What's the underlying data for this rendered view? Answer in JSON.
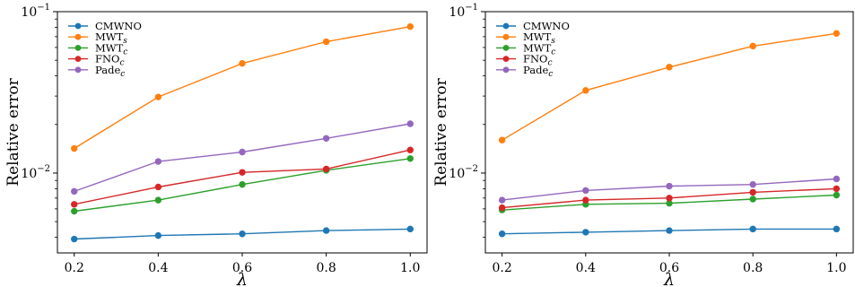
{
  "chart_data": [
    {
      "type": "line",
      "x": [
        0.2,
        0.4,
        0.6,
        0.8,
        1.0
      ],
      "xlabel": "λ",
      "ylabel": "Relative error",
      "xticks": [
        "0.2",
        "0.4",
        "0.6",
        "0.8",
        "1.0"
      ],
      "yscale": "log",
      "ylim": [
        0.0032,
        0.1
      ],
      "legend": "top-left",
      "grid": false,
      "series": [
        {
          "name": "CMWNO",
          "label_main": "CMWNO",
          "label_sub": "",
          "color": "#1f77b4",
          "values": [
            0.0039,
            0.0041,
            0.0042,
            0.0044,
            0.0045
          ]
        },
        {
          "name": "MWTs",
          "label_main": "MWT",
          "label_sub": "s",
          "color": "#ff7f0e",
          "values": [
            0.0142,
            0.0296,
            0.0478,
            0.0651,
            0.0808
          ]
        },
        {
          "name": "MWTc",
          "label_main": "MWT",
          "label_sub": "c",
          "color": "#2ca02c",
          "values": [
            0.0058,
            0.0068,
            0.0085,
            0.0104,
            0.0123
          ]
        },
        {
          "name": "FNOc",
          "label_main": "FNO",
          "label_sub": "c",
          "color": "#d62728",
          "values": [
            0.0064,
            0.0082,
            0.0101,
            0.0106,
            0.0139
          ]
        },
        {
          "name": "Padec",
          "label_main": "Pade",
          "label_sub": "c",
          "color": "#9467bd",
          "values": [
            0.0077,
            0.0118,
            0.0135,
            0.0164,
            0.0202
          ]
        }
      ]
    },
    {
      "type": "line",
      "x": [
        0.2,
        0.4,
        0.6,
        0.8,
        1.0
      ],
      "xlabel": "λ",
      "ylabel": "Relative error",
      "xticks": [
        "0.2",
        "0.4",
        "0.6",
        "0.8",
        "1.0"
      ],
      "yscale": "log",
      "ylim": [
        0.0032,
        0.1
      ],
      "legend": "top-left",
      "grid": false,
      "series": [
        {
          "name": "CMWNO",
          "label_main": "CMWNO",
          "label_sub": "",
          "color": "#1f77b4",
          "values": [
            0.0042,
            0.0043,
            0.0044,
            0.0045,
            0.0045
          ]
        },
        {
          "name": "MWTs",
          "label_main": "MWT",
          "label_sub": "s",
          "color": "#ff7f0e",
          "values": [
            0.016,
            0.0325,
            0.0453,
            0.0612,
            0.0733
          ]
        },
        {
          "name": "MWTc",
          "label_main": "MWT",
          "label_sub": "c",
          "color": "#2ca02c",
          "values": [
            0.0059,
            0.0064,
            0.0065,
            0.0069,
            0.0073
          ]
        },
        {
          "name": "FNOc",
          "label_main": "FNO",
          "label_sub": "c",
          "color": "#d62728",
          "values": [
            0.0061,
            0.0068,
            0.007,
            0.0076,
            0.008
          ]
        },
        {
          "name": "Padec",
          "label_main": "Pade",
          "label_sub": "c",
          "color": "#9467bd",
          "values": [
            0.0068,
            0.0078,
            0.0083,
            0.0085,
            0.0092
          ]
        }
      ]
    }
  ]
}
